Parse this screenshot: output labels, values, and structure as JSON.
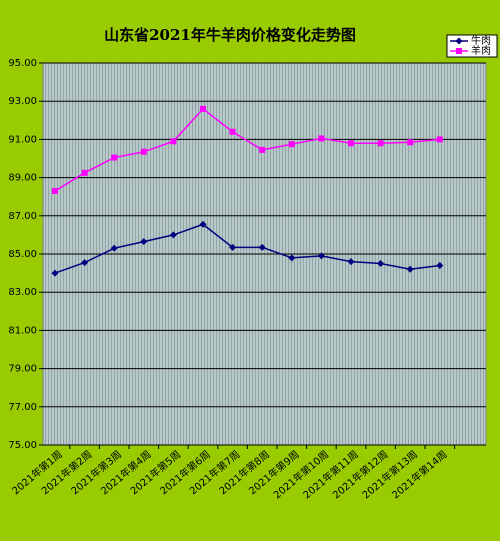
{
  "chart_data": {
    "type": "line",
    "title": "山东省2021年牛羊肉价格变化走势图",
    "categories": [
      "2021年第1周",
      "2021年第2周",
      "2021年第3周",
      "2021年第4周",
      "2021年第5周",
      "2021年第6周",
      "2021年第7周",
      "2021年第8周",
      "2021年第9周",
      "2021年第10周",
      "2021年第11周",
      "2021年第12周",
      "2021年第13周",
      "2021年第14周"
    ],
    "series": [
      {
        "name": "牛肉",
        "color": "#000080",
        "marker": "diamond",
        "values": [
          84.0,
          84.55,
          85.3,
          85.65,
          86.0,
          86.55,
          85.35,
          85.35,
          84.8,
          84.9,
          84.6,
          84.5,
          84.2,
          84.4
        ]
      },
      {
        "name": "羊肉",
        "color": "#ff00ff",
        "marker": "square",
        "values": [
          88.3,
          89.25,
          90.05,
          90.35,
          90.9,
          92.6,
          91.4,
          90.45,
          90.75,
          91.05,
          90.8,
          90.8,
          90.85,
          91.0
        ]
      }
    ],
    "ylim": [
      75,
      95
    ],
    "yticks": [
      {
        "value": 75,
        "label": "75.00"
      },
      {
        "value": 77,
        "label": "77.00"
      },
      {
        "value": 79,
        "label": "79.00"
      },
      {
        "value": 81,
        "label": "81.00"
      },
      {
        "value": 83,
        "label": "83.00"
      },
      {
        "value": 85,
        "label": "85.00"
      },
      {
        "value": 87,
        "label": "87.00"
      },
      {
        "value": 89,
        "label": "89.00"
      },
      {
        "value": 91,
        "label": "91.00"
      },
      {
        "value": 93,
        "label": "93.00"
      },
      {
        "value": 95,
        "label": "95.00"
      }
    ],
    "grid": true,
    "legend": "top-right"
  }
}
